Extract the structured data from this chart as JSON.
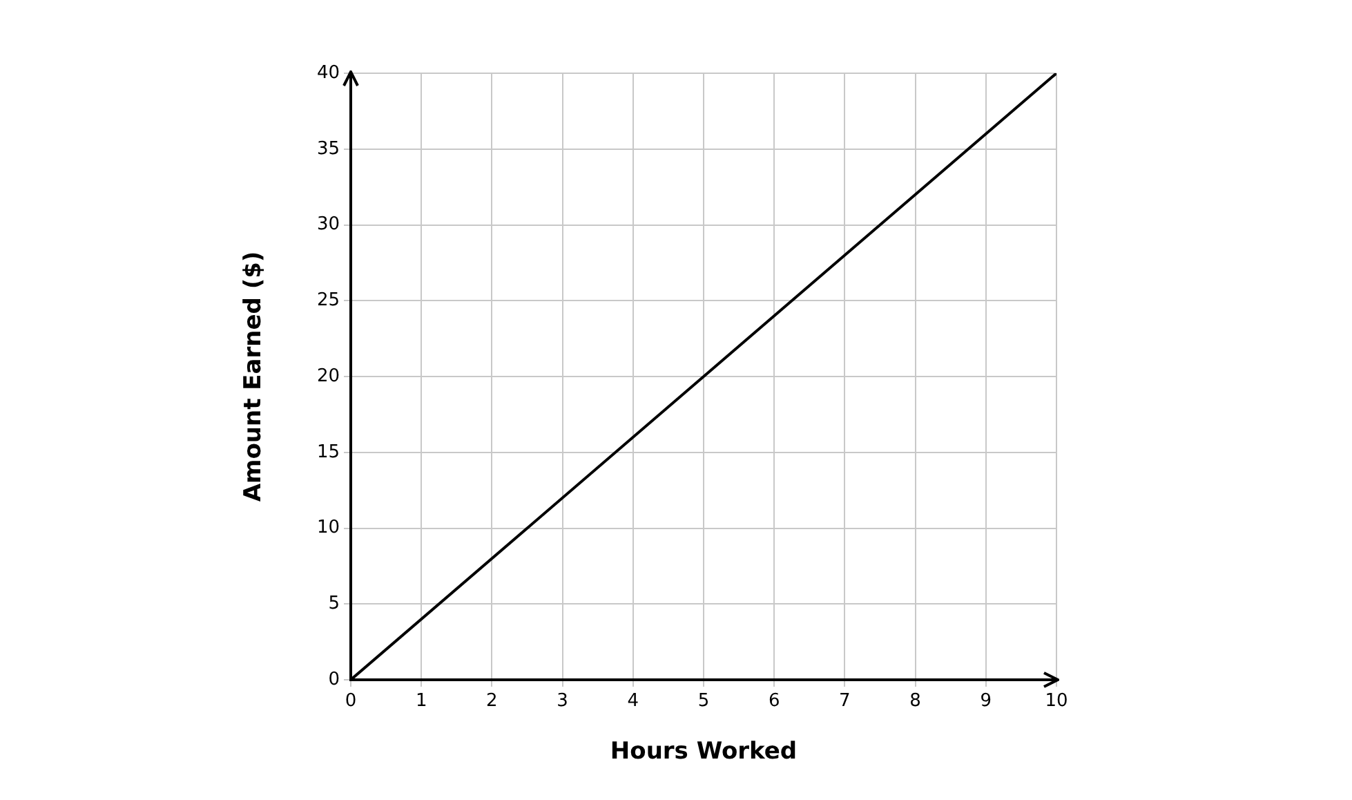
{
  "chart_data": {
    "type": "line",
    "xlabel": "Hours Worked",
    "ylabel": "Amount Earned ($)",
    "x": [
      0,
      10
    ],
    "series": [
      {
        "color": "#000000",
        "values": [
          0,
          40
        ]
      }
    ],
    "xlim": [
      0,
      10
    ],
    "xticks": [
      0,
      1,
      2,
      3,
      4,
      5,
      6,
      7,
      8,
      9,
      10
    ],
    "ylim": [
      0,
      40
    ],
    "yticks": [
      0,
      5,
      10,
      15,
      20,
      25,
      30,
      35,
      40
    ],
    "grid": true,
    "legend": false,
    "marker": "none",
    "line_style": "solid"
  }
}
